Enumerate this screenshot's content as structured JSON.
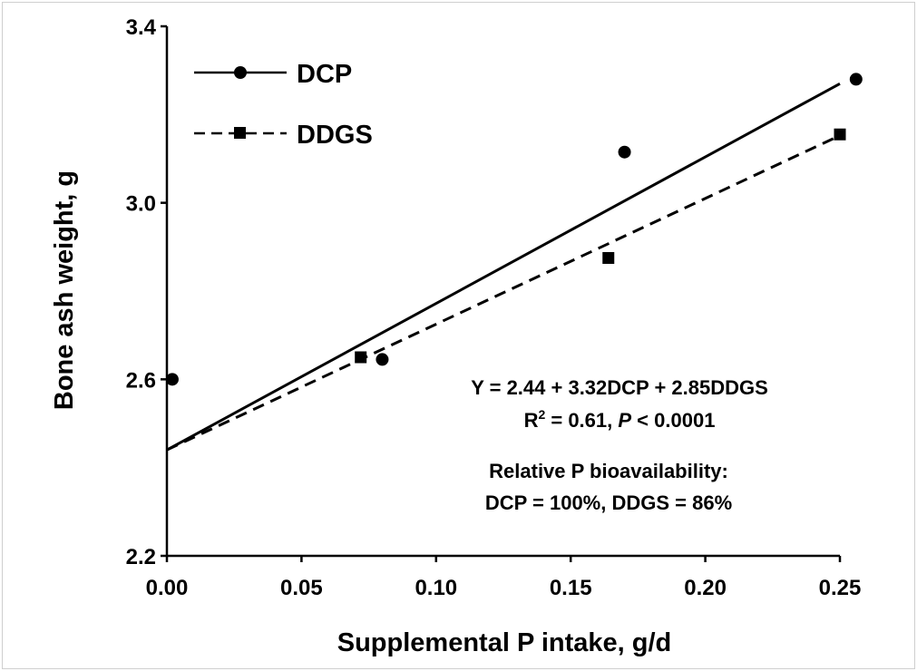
{
  "chart_data": {
    "type": "scatter",
    "title": "",
    "xlabel": "Supplemental P intake, g/d",
    "ylabel": "Bone ash weight, g",
    "xlim": [
      0,
      0.25
    ],
    "ylim": [
      2.2,
      3.4
    ],
    "x_ticks": [
      0,
      0.05,
      0.1,
      0.15,
      0.2,
      0.25
    ],
    "x_tick_labels": [
      "0.00",
      "0.05",
      "0.10",
      "0.15",
      "0.20",
      "0.25"
    ],
    "y_ticks": [
      2.2,
      2.6,
      3.0,
      3.4
    ],
    "y_tick_labels": [
      "2.2",
      "2.6",
      "3.0",
      "3.4"
    ],
    "legend_position": "top-left",
    "grid": false,
    "series": [
      {
        "name": "DCP",
        "marker": "circle",
        "line_style": "solid",
        "points": [
          [
            0.002,
            2.6
          ],
          [
            0.08,
            2.645
          ],
          [
            0.17,
            3.115
          ],
          [
            0.256,
            3.28
          ]
        ],
        "fit": {
          "intercept": 2.44,
          "slope": 3.32
        }
      },
      {
        "name": "DDGS",
        "marker": "square",
        "line_style": "dashed",
        "points": [
          [
            0.072,
            2.65
          ],
          [
            0.164,
            2.875
          ],
          [
            0.25,
            3.155
          ]
        ],
        "fit": {
          "intercept": 2.44,
          "slope": 2.85
        }
      }
    ],
    "annotations": {
      "equation": "Y = 2.44 + 3.32DCP + 2.85DDGS",
      "r2_prefix": "R",
      "r2_sup": "2",
      "r2_middle": " = 0.61, ",
      "p_label": "P",
      "p_suffix": " < 0.0001",
      "bio_line1": "Relative P bioavailability:",
      "bio_line2": "DCP = 100%, DDGS = 86%"
    }
  }
}
